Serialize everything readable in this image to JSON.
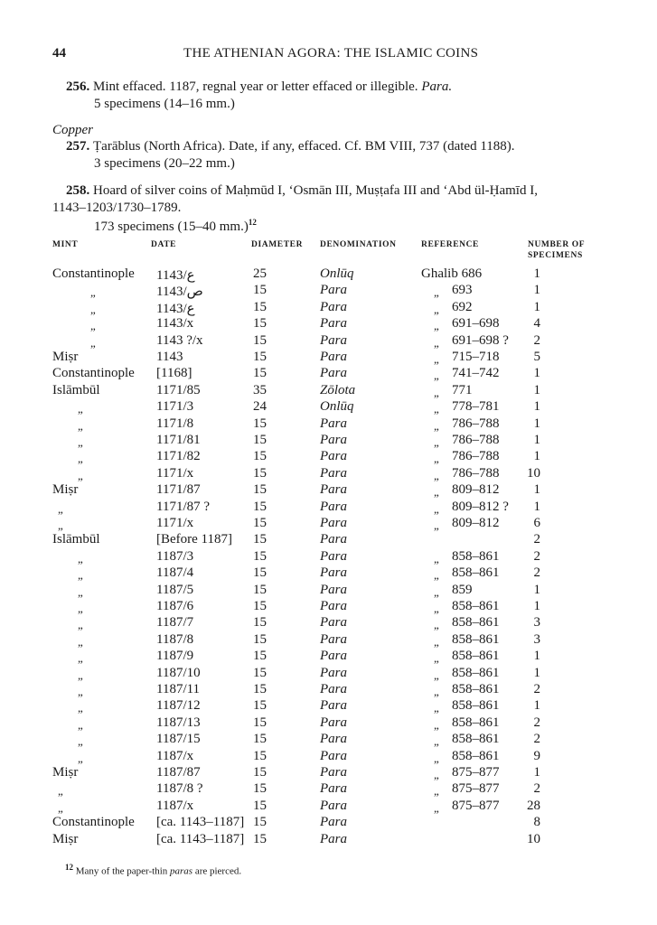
{
  "page_number": "44",
  "running_title": "THE ATHENIAN AGORA: THE ISLAMIC COINS",
  "entries": {
    "e256": {
      "number": "256.",
      "text": "Mint effaced. 1187, regnal year or letter effaced or illegible.",
      "denomination": "Para.",
      "specimens": "5 specimens (14–16 mm.)"
    },
    "section": "Copper",
    "e257": {
      "number": "257.",
      "text": "Ṭarāblus (North Africa). Date, if any, effaced. Cf. BM VIII, 737 (dated 1188).",
      "specimens": "3 specimens (20–22 mm.)"
    },
    "e258": {
      "number": "258.",
      "text": "Hoard of silver coins of Maḥmūd I, ‘Osmān III, Muṣṭafa III and ‘Abd ül-Ḥamīd I,",
      "text2": "1143–1203/1730–1789.",
      "specimens": "173 specimens (15–40 mm.)",
      "footnote_ref": "12"
    }
  },
  "table": {
    "headers": {
      "mint": "MINT",
      "date": "DATE",
      "diameter": "DIAMETER",
      "denomination": "DENOMINATION",
      "reference": "REFERENCE",
      "count1": "NUMBER OF",
      "count2": "SPECIMENS"
    },
    "rows": [
      [
        "Constantinople",
        "1143/ع",
        "25",
        "Onlūq",
        "",
        "Ghalib 686",
        "1"
      ],
      [
        "„",
        "1143/ص",
        "15",
        "Para",
        "„",
        "693",
        "1"
      ],
      [
        "„",
        "1143/ع",
        "15",
        "Para",
        "„",
        "692",
        "1"
      ],
      [
        "„",
        "1143/x",
        "15",
        "Para",
        "„",
        "691–698",
        "4"
      ],
      [
        "„",
        "1143 ?/x",
        "15",
        "Para",
        "„",
        "691–698 ?",
        "2"
      ],
      [
        "Miṣr",
        "1143",
        "15",
        "Para",
        "„",
        "715–718",
        "5"
      ],
      [
        "Constantinople",
        "[1168]",
        "15",
        "Para",
        "„",
        "741–742",
        "1"
      ],
      [
        "Islāmbūl",
        "1171/85",
        "35",
        "Zōlota",
        "„",
        "771",
        "1"
      ],
      [
        "„",
        "1171/3",
        "24",
        "Onlūq",
        "„",
        "778–781",
        "1"
      ],
      [
        "„",
        "1171/8",
        "15",
        "Para",
        "„",
        "786–788",
        "1"
      ],
      [
        "„",
        "1171/81",
        "15",
        "Para",
        "„",
        "786–788",
        "1"
      ],
      [
        "„",
        "1171/82",
        "15",
        "Para",
        "„",
        "786–788",
        "1"
      ],
      [
        "„",
        "1171/x",
        "15",
        "Para",
        "„",
        "786–788",
        "10"
      ],
      [
        "Miṣr",
        "1171/87",
        "15",
        "Para",
        "„",
        "809–812",
        "1"
      ],
      [
        "„",
        "1171/87 ?",
        "15",
        "Para",
        "„",
        "809–812 ?",
        "1"
      ],
      [
        "„",
        "1171/x",
        "15",
        "Para",
        "„",
        "809–812",
        "6"
      ],
      [
        "Islāmbūl",
        "[Before 1187]",
        "15",
        "Para",
        "",
        "",
        "2"
      ],
      [
        "„",
        "1187/3",
        "15",
        "Para",
        "„",
        "858–861",
        "2"
      ],
      [
        "„",
        "1187/4",
        "15",
        "Para",
        "„",
        "858–861",
        "2"
      ],
      [
        "„",
        "1187/5",
        "15",
        "Para",
        "„",
        "859",
        "1"
      ],
      [
        "„",
        "1187/6",
        "15",
        "Para",
        "„",
        "858–861",
        "1"
      ],
      [
        "„",
        "1187/7",
        "15",
        "Para",
        "„",
        "858–861",
        "3"
      ],
      [
        "„",
        "1187/8",
        "15",
        "Para",
        "„",
        "858–861",
        "3"
      ],
      [
        "„",
        "1187/9",
        "15",
        "Para",
        "„",
        "858–861",
        "1"
      ],
      [
        "„",
        "1187/10",
        "15",
        "Para",
        "„",
        "858–861",
        "1"
      ],
      [
        "„",
        "1187/11",
        "15",
        "Para",
        "„",
        "858–861",
        "2"
      ],
      [
        "„",
        "1187/12",
        "15",
        "Para",
        "„",
        "858–861",
        "1"
      ],
      [
        "„",
        "1187/13",
        "15",
        "Para",
        "„",
        "858–861",
        "2"
      ],
      [
        "„",
        "1187/15",
        "15",
        "Para",
        "„",
        "858–861",
        "2"
      ],
      [
        "„",
        "1187/x",
        "15",
        "Para",
        "„",
        "858–861",
        "9"
      ],
      [
        "Miṣr",
        "1187/87",
        "15",
        "Para",
        "„",
        "875–877",
        "1"
      ],
      [
        "„",
        "1187/8 ?",
        "15",
        "Para",
        "„",
        "875–877",
        "2"
      ],
      [
        "„",
        "1187/x",
        "15",
        "Para",
        "„",
        "875–877",
        "28"
      ],
      [
        "Constantinople",
        "[ca. 1143–1187]",
        "15",
        "Para",
        "",
        "",
        "8"
      ],
      [
        "Miṣr",
        "[ca. 1143–1187]",
        "15",
        "Para",
        "",
        "",
        "10"
      ]
    ]
  },
  "footnote": {
    "marker": "12",
    "text_before": "Many of the paper-thin ",
    "text_italic": "paras",
    "text_after": " are pierced."
  }
}
